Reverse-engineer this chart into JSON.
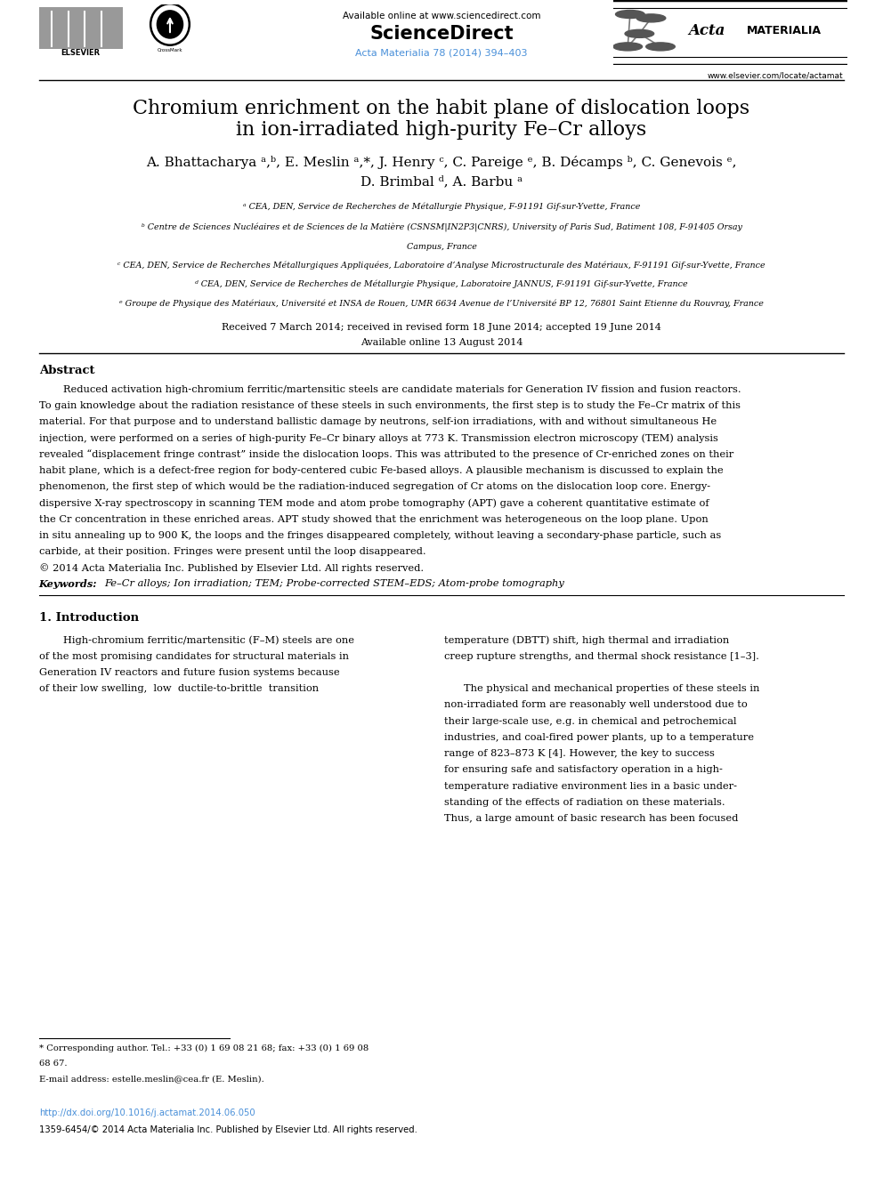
{
  "fig_width": 9.92,
  "fig_height": 13.23,
  "background_color": "#ffffff",
  "available_online": "Available online at www.sciencedirect.com",
  "journal_ref": "Acta Materialia 78 (2014) 394–403",
  "journal_ref_color": "#4A90D9",
  "website": "www.elsevier.com/locate/actamat",
  "title_line1": "Chromium enrichment on the habit plane of dislocation loops",
  "title_line2": "in ion-irradiated high-purity Fe–Cr alloys",
  "author_line1": "A. Bhattacharya ᵃ,ᵇ, E. Meslin ᵃ,*, J. Henry ᶜ, C. Pareige ᵉ, B. Décamps ᵇ, C. Genevois ᵉ,",
  "author_line2": "D. Brimbal ᵈ, A. Barbu ᵃ",
  "aff_a": "ᵃ CEA, DEN, Service de Recherches de Métallurgie Physique, F-91191 Gif-sur-Yvette, France",
  "aff_b1": "ᵇ Centre de Sciences Nucléaires et de Sciences de la Matière (CSNSM|IN2P3|CNRS), University of Paris Sud, Batiment 108, F-91405 Orsay",
  "aff_b2": "Campus, France",
  "aff_c": "ᶜ CEA, DEN, Service de Recherches Métallurgiques Appliquées, Laboratoire d’Analyse Microstructurale des Matériaux, F-91191 Gif-sur-Yvette, France",
  "aff_d": "ᵈ CEA, DEN, Service de Recherches de Métallurgie Physique, Laboratoire JANNUS, F-91191 Gif-sur-Yvette, France",
  "aff_e": "ᵉ Groupe de Physique des Matériaux, Université et INSA de Rouen, UMR 6634 Avenue de l’Université BP 12, 76801 Saint Etienne du Rouvray, France",
  "date_line1": "Received 7 March 2014; received in revised form 18 June 2014; accepted 19 June 2014",
  "date_line2": "Available online 13 August 2014",
  "abstract_title": "Abstract",
  "abstract_lines": [
    "Reduced activation high-chromium ferritic/martensitic steels are candidate materials for Generation IV fission and fusion reactors.",
    "To gain knowledge about the radiation resistance of these steels in such environments, the first step is to study the Fe–Cr matrix of this",
    "material. For that purpose and to understand ballistic damage by neutrons, self-ion irradiations, with and without simultaneous He",
    "injection, were performed on a series of high-purity Fe–Cr binary alloys at 773 K. Transmission electron microscopy (TEM) analysis",
    "revealed “displacement fringe contrast” inside the dislocation loops. This was attributed to the presence of Cr-enriched zones on their",
    "habit plane, which is a defect-free region for body-centered cubic Fe-based alloys. A plausible mechanism is discussed to explain the",
    "phenomenon, the first step of which would be the radiation-induced segregation of Cr atoms on the dislocation loop core. Energy-",
    "dispersive X-ray spectroscopy in scanning TEM mode and atom probe tomography (APT) gave a coherent quantitative estimate of",
    "the Cr concentration in these enriched areas. APT study showed that the enrichment was heterogeneous on the loop plane. Upon",
    "in situ annealing up to 900 K, the loops and the fringes disappeared completely, without leaving a secondary-phase particle, such as",
    "carbide, at their position. Fringes were present until the loop disappeared.",
    "© 2014 Acta Materialia Inc. Published by Elsevier Ltd. All rights reserved."
  ],
  "keywords_label": "Keywords:",
  "keywords_text": "Fe–Cr alloys; Ion irradiation; TEM; Probe-corrected STEM–EDS; Atom-probe tomography",
  "section1_title": "1. Introduction",
  "col1_lines": [
    "High-chromium ferritic/martensitic (F–M) steels are one",
    "of the most promising candidates for structural materials in",
    "Generation IV reactors and future fusion systems because",
    "of their low swelling,  low  ductile-to-brittle  transition"
  ],
  "col2_lines": [
    "temperature (DBTT) shift, high thermal and irradiation",
    "creep rupture strengths, and thermal shock resistance [1–3].",
    "",
    "The physical and mechanical properties of these steels in",
    "non-irradiated form are reasonably well understood due to",
    "their large-scale use, e.g. in chemical and petrochemical",
    "industries, and coal-fired power plants, up to a temperature",
    "range of 823–873 K [4]. However, the key to success",
    "for ensuring safe and satisfactory operation in a high-",
    "temperature radiative environment lies in a basic under-",
    "standing of the effects of radiation on these materials.",
    "Thus, a large amount of basic research has been focused"
  ],
  "footnote1": "* Corresponding author. Tel.: +33 (0) 1 69 08 21 68; fax: +33 (0) 1 69 08",
  "footnote2": "68 67.",
  "footnote3": "E-mail address: estelle.meslin@cea.fr (E. Meslin).",
  "doi": "http://dx.doi.org/10.1016/j.actamat.2014.06.050",
  "issn": "1359-6454/© 2014 Acta Materialia Inc. Published by Elsevier Ltd. All rights reserved.",
  "doi_color": "#4A90D9",
  "black": "#000000",
  "gray": "#555555",
  "light_gray": "#888888"
}
